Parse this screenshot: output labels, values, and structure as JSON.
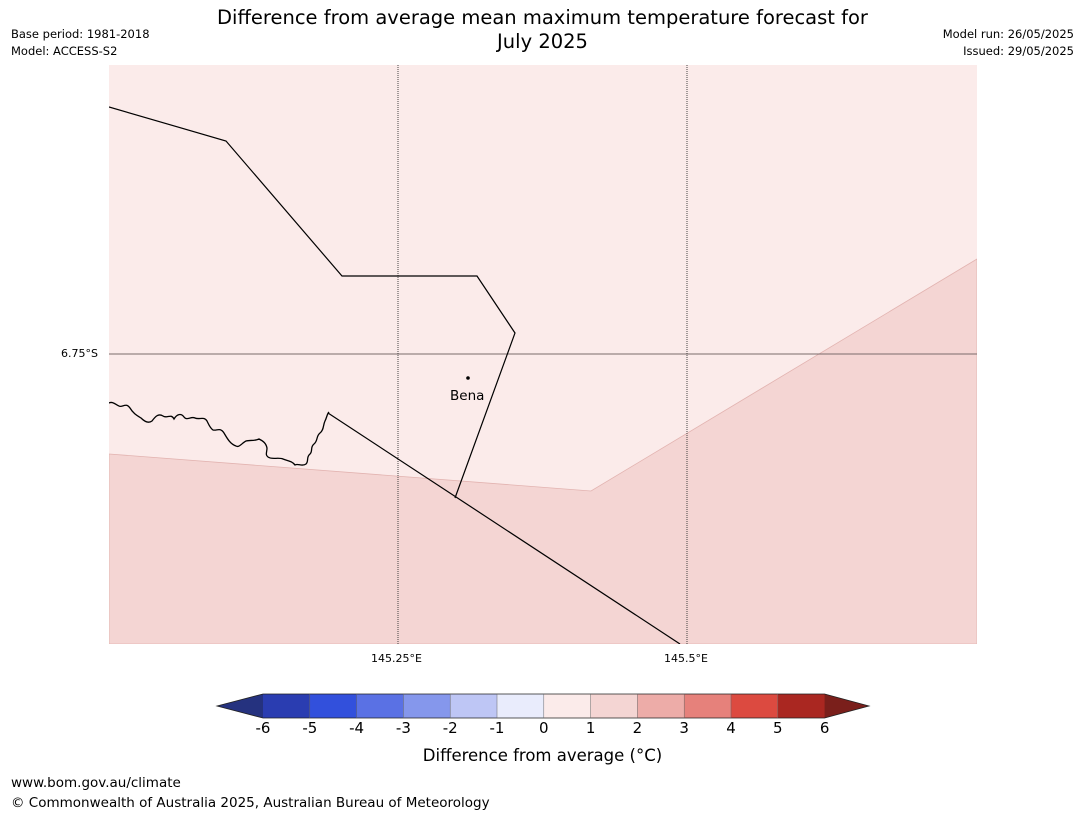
{
  "title_line1": "Difference from average mean maximum temperature forecast for",
  "title_line2": "July 2025",
  "base_period": "Base period: 1981-2018",
  "model": "Model: ACCESS-S2",
  "model_run": "Model run: 26/05/2025",
  "issued": "Issued: 29/05/2025",
  "map": {
    "lat_label": "6.75°S",
    "lon_labels": [
      "145.25°E",
      "145.5°E"
    ],
    "place": "Bena",
    "region_colors": {
      "anomaly_0_to_1": "#fbebea",
      "anomaly_1_to_2": "#f4d5d3"
    }
  },
  "colorbar": {
    "ticks": [
      "-6",
      "-5",
      "-4",
      "-3",
      "-2",
      "-1",
      "0",
      "1",
      "2",
      "3",
      "4",
      "5",
      "6"
    ],
    "colors": [
      "#25327f",
      "#2a3db1",
      "#3250dc",
      "#5a71e4",
      "#8597ec",
      "#bec6f5",
      "#e9ecfc",
      "#fbebea",
      "#f4d5d3",
      "#edaca8",
      "#e6817b",
      "#dc4a40",
      "#aa2721",
      "#7a1f1b"
    ],
    "label": "Difference from average (°C)"
  },
  "footer": {
    "url": "www.bom.gov.au/climate",
    "copyright": "© Commonwealth of Australia 2025, Australian Bureau of Meteorology"
  }
}
